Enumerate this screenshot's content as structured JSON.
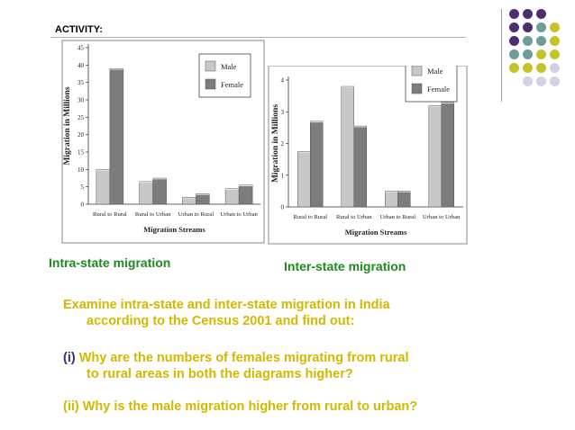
{
  "header": {
    "activity_label": "ACTIVITY:"
  },
  "theme": {
    "male_color": "#c8c8c8",
    "female_color": "#7c7c7c",
    "caption_color": "#1c8a1c",
    "question_color": "#d4b800",
    "dot_colors": {
      "purple": "#4e2e6e",
      "teal": "#6f9c98",
      "olive": "#c4c42a",
      "lavender": "#d4d0e6"
    }
  },
  "chart_data": [
    {
      "type": "bar",
      "title": "",
      "categories": [
        "Rural to Rural",
        "Rural to Urban",
        "Urban to Rural",
        "Urban to Urban"
      ],
      "series": [
        {
          "name": "Male",
          "values": [
            10,
            6.5,
            2,
            4.5
          ]
        },
        {
          "name": "Female",
          "values": [
            39,
            7.5,
            3,
            5.5
          ]
        }
      ],
      "xlabel": "Migration Streams",
      "ylabel": "Migration in Millions",
      "ylim": [
        0,
        45
      ],
      "yticks": [
        0,
        5,
        10,
        15,
        20,
        25,
        30,
        35,
        40,
        45
      ],
      "legend": "top-right",
      "grid": false,
      "caption": "Intra-state migration"
    },
    {
      "type": "bar",
      "title": "",
      "categories": [
        "Rural to Rural",
        "Rural to Urban",
        "Urban to Rural",
        "Urban to Urban"
      ],
      "series": [
        {
          "name": "Male",
          "values": [
            1.75,
            3.8,
            0.5,
            3.2
          ]
        },
        {
          "name": "Female",
          "values": [
            2.7,
            2.55,
            0.5,
            3.3
          ]
        }
      ],
      "xlabel": "Migration Streams",
      "ylabel": "Migration in Millions",
      "ylim": [
        0,
        4
      ],
      "yticks": [
        0,
        1,
        2,
        3,
        4
      ],
      "legend": "top-right",
      "grid": false,
      "caption": "Inter-state migration"
    }
  ],
  "questions": {
    "intro_line1": "Examine intra-state and inter-state migration in India",
    "intro_line2": "according to the Census 2001 and find out:",
    "q1_num": "(i)",
    "q1_line1": " Why are the numbers of females migrating from rural",
    "q1_line2": "to rural areas in both the diagrams higher?",
    "q2": "(ii) Why is the male migration higher from rural to urban?"
  }
}
